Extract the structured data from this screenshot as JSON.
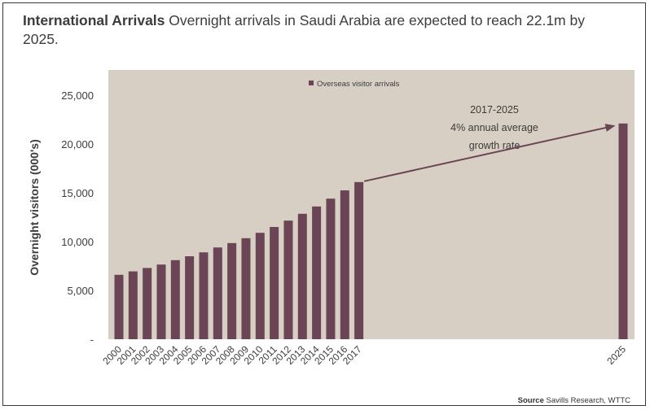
{
  "title_bold": "International Arrivals",
  "title_rest": "Overnight arrivals in Saudi Arabia are expected to reach 22.1m by 2025.",
  "source_label": "Source",
  "source_text": "Savills Research, WTTC",
  "colors": {
    "plot_background": "#d7cfc4",
    "bar": "#6b4456",
    "arrow": "#6b4456",
    "text": "#3c3c3c"
  },
  "chart_data": {
    "type": "bar",
    "title": "",
    "xlabel": "",
    "ylabel": "Overnight visitors (000's)",
    "ylim": [
      0,
      25000
    ],
    "yticks": [
      0,
      5000,
      10000,
      15000,
      20000,
      25000
    ],
    "ytick_labels": [
      "-",
      "5,000",
      "10,000",
      "15,000",
      "20,000",
      "25,000"
    ],
    "categories": [
      "2000",
      "2001",
      "2002",
      "2003",
      "2004",
      "2005",
      "2006",
      "2007",
      "2008",
      "2009",
      "2010",
      "2011",
      "2012",
      "2013",
      "2014",
      "2015",
      "2016",
      "2017",
      "2025"
    ],
    "series": [
      {
        "name": "Overseas visitor arrivals",
        "values": [
          6600,
          6950,
          7300,
          7650,
          8100,
          8500,
          8900,
          9400,
          9850,
          10350,
          10900,
          11500,
          12150,
          12850,
          13600,
          14400,
          15250,
          16100,
          22100
        ]
      }
    ],
    "legend_position": "top-center",
    "grid": false,
    "annotation": {
      "lines": [
        "2017-2025",
        "4% annual average",
        "growth rate"
      ],
      "arrow_from": "2017",
      "arrow_to": "2025"
    }
  }
}
